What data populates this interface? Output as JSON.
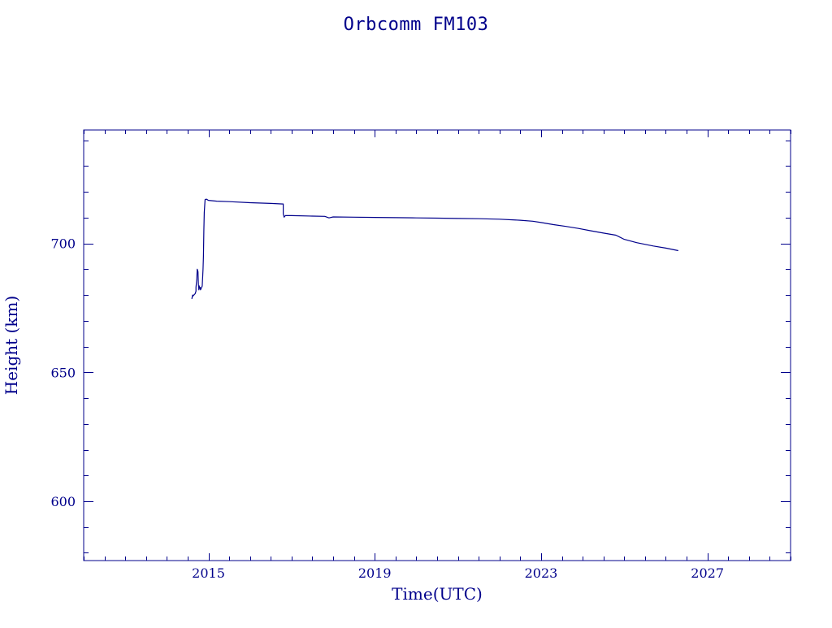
{
  "chart_data": {
    "type": "line",
    "title": "Orbcomm FM103",
    "xlabel": "Time(UTC)",
    "ylabel": "Height (km)",
    "xlim": [
      2012.0,
      2029.0
    ],
    "ylim": [
      577,
      744
    ],
    "x_ticks": [
      2015,
      2019,
      2023,
      2027
    ],
    "x_tick_labels": [
      "2015",
      "2019",
      "2023",
      "2027"
    ],
    "y_ticks": [
      600,
      650,
      700
    ],
    "y_tick_labels": [
      "600",
      "650",
      "700"
    ],
    "grid": false,
    "color": "#00008b",
    "series": [
      {
        "x": [
          2014.6,
          2014.62,
          2014.62,
          2014.68,
          2014.7,
          2014.7,
          2014.72,
          2014.73,
          2014.75,
          2014.76,
          2014.77,
          2014.78,
          2014.78,
          2014.8,
          2014.81,
          2014.85,
          2014.87,
          2014.88,
          2014.89,
          2014.9,
          2014.92,
          2014.95,
          2014.97,
          2015.0,
          2015.2,
          2015.5,
          2016.0,
          2016.5,
          2016.8,
          2016.8,
          2016.82,
          2016.85,
          2017.0,
          2017.5,
          2017.8,
          2017.9,
          2018.0,
          2018.5,
          2019.0,
          2019.5,
          2020.0,
          2020.5,
          2021.0,
          2021.5,
          2022.0,
          2022.5,
          2022.8,
          2023.0,
          2023.3,
          2023.6,
          2023.9,
          2024.2,
          2024.5,
          2024.8,
          2025.0,
          2025.3,
          2025.7,
          2026.0,
          2026.3
        ],
        "y": [
          678.5,
          680.0,
          679.5,
          680.5,
          681.5,
          683.0,
          686.0,
          690.0,
          689.0,
          684.0,
          682.0,
          683.5,
          682.5,
          683.0,
          682.0,
          683.5,
          690.0,
          695.0,
          705.0,
          712.0,
          717.0,
          717.2,
          717.0,
          716.7,
          716.4,
          716.2,
          715.8,
          715.5,
          715.3,
          711.5,
          710.2,
          710.8,
          710.8,
          710.6,
          710.5,
          709.9,
          710.3,
          710.2,
          710.1,
          710.0,
          709.9,
          709.8,
          709.7,
          709.6,
          709.4,
          709.0,
          708.6,
          708.1,
          707.3,
          706.6,
          705.8,
          704.9,
          704.0,
          703.2,
          701.6,
          700.3,
          699.0,
          698.2,
          697.2
        ]
      }
    ]
  }
}
